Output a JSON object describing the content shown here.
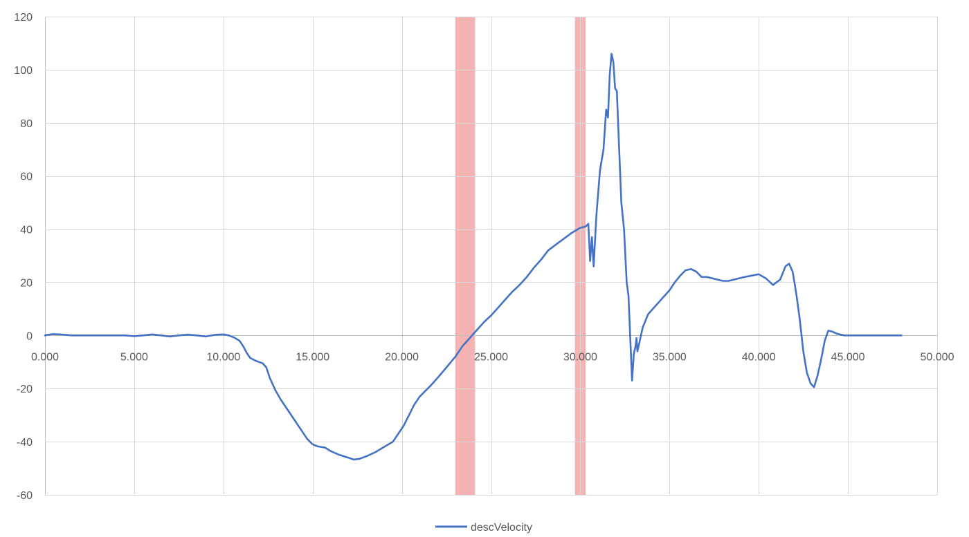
{
  "chart_data": {
    "type": "line",
    "title": "",
    "xlabel": "",
    "ylabel": "",
    "xlim": [
      0,
      50
    ],
    "ylim": [
      -60,
      120
    ],
    "x_ticks": [
      0,
      5,
      10,
      15,
      20,
      25,
      30,
      35,
      40,
      45,
      50
    ],
    "x_tick_labels": [
      "0.000",
      "5.000",
      "10.000",
      "15.000",
      "20.000",
      "25.000",
      "30.000",
      "35.000",
      "40.000",
      "45.000",
      "50.000"
    ],
    "y_ticks": [
      -60,
      -40,
      -20,
      0,
      20,
      40,
      60,
      80,
      100,
      120
    ],
    "y_tick_labels": [
      "-60",
      "-40",
      "-20",
      "0",
      "20",
      "40",
      "60",
      "80",
      "100",
      "120"
    ],
    "grid": true,
    "legend_position": "bottom",
    "highlight_bands": [
      {
        "x_start": 23.0,
        "x_end": 24.1,
        "color": "#f4a6a6"
      },
      {
        "x_start": 29.7,
        "x_end": 30.3,
        "color": "#f4a6a6"
      }
    ],
    "series": [
      {
        "name": "descVelocity",
        "color": "#4472c4",
        "points": [
          [
            0.0,
            0.0
          ],
          [
            0.2,
            0.3
          ],
          [
            0.5,
            0.5
          ],
          [
            1.0,
            0.3
          ],
          [
            1.5,
            0.0
          ],
          [
            3.0,
            0.0
          ],
          [
            4.5,
            0.0
          ],
          [
            5.0,
            -0.3
          ],
          [
            5.5,
            0.0
          ],
          [
            6.0,
            0.4
          ],
          [
            6.5,
            0.0
          ],
          [
            7.0,
            -0.4
          ],
          [
            7.5,
            0.0
          ],
          [
            8.0,
            0.3
          ],
          [
            8.5,
            0.0
          ],
          [
            9.0,
            -0.4
          ],
          [
            9.5,
            0.2
          ],
          [
            10.0,
            0.4
          ],
          [
            10.3,
            0.0
          ],
          [
            10.6,
            -0.8
          ],
          [
            10.9,
            -2.0
          ],
          [
            11.1,
            -4.0
          ],
          [
            11.3,
            -6.5
          ],
          [
            11.5,
            -8.5
          ],
          [
            11.8,
            -9.5
          ],
          [
            12.0,
            -10.0
          ],
          [
            12.2,
            -10.5
          ],
          [
            12.4,
            -12.0
          ],
          [
            12.6,
            -16.0
          ],
          [
            12.9,
            -20.5
          ],
          [
            13.2,
            -24.0
          ],
          [
            13.6,
            -28.0
          ],
          [
            14.0,
            -32.0
          ],
          [
            14.4,
            -36.0
          ],
          [
            14.7,
            -39.0
          ],
          [
            15.0,
            -41.0
          ],
          [
            15.3,
            -41.8
          ],
          [
            15.7,
            -42.2
          ],
          [
            16.0,
            -43.5
          ],
          [
            16.5,
            -45.0
          ],
          [
            17.0,
            -46.0
          ],
          [
            17.3,
            -46.7
          ],
          [
            17.6,
            -46.5
          ],
          [
            18.0,
            -45.5
          ],
          [
            18.5,
            -44.0
          ],
          [
            19.0,
            -42.0
          ],
          [
            19.5,
            -40.0
          ],
          [
            19.8,
            -37.0
          ],
          [
            20.1,
            -34.0
          ],
          [
            20.4,
            -30.0
          ],
          [
            20.7,
            -26.0
          ],
          [
            21.0,
            -23.0
          ],
          [
            21.3,
            -21.0
          ],
          [
            21.6,
            -19.0
          ],
          [
            22.0,
            -16.0
          ],
          [
            22.5,
            -12.0
          ],
          [
            23.0,
            -8.0
          ],
          [
            23.4,
            -4.0
          ],
          [
            23.8,
            -1.0
          ],
          [
            24.2,
            2.0
          ],
          [
            24.6,
            5.0
          ],
          [
            25.0,
            7.5
          ],
          [
            25.4,
            10.5
          ],
          [
            25.8,
            13.5
          ],
          [
            26.2,
            16.5
          ],
          [
            26.6,
            19.0
          ],
          [
            27.0,
            22.0
          ],
          [
            27.4,
            25.5
          ],
          [
            27.8,
            28.5
          ],
          [
            28.2,
            32.0
          ],
          [
            28.6,
            34.0
          ],
          [
            29.0,
            36.0
          ],
          [
            29.5,
            38.5
          ],
          [
            30.0,
            40.5
          ],
          [
            30.3,
            41.0
          ],
          [
            30.45,
            42.0
          ],
          [
            30.55,
            28.0
          ],
          [
            30.65,
            37.0
          ],
          [
            30.75,
            26.0
          ],
          [
            30.9,
            45.0
          ],
          [
            31.1,
            62.0
          ],
          [
            31.3,
            70.0
          ],
          [
            31.45,
            85.0
          ],
          [
            31.55,
            82.0
          ],
          [
            31.65,
            98.0
          ],
          [
            31.75,
            106.0
          ],
          [
            31.85,
            103.0
          ],
          [
            31.95,
            93.0
          ],
          [
            32.05,
            92.0
          ],
          [
            32.15,
            75.0
          ],
          [
            32.3,
            50.0
          ],
          [
            32.45,
            40.0
          ],
          [
            32.6,
            20.0
          ],
          [
            32.7,
            15.0
          ],
          [
            32.9,
            -17.0
          ],
          [
            33.0,
            -7.0
          ],
          [
            33.1,
            -4.0
          ],
          [
            33.15,
            -1.0
          ],
          [
            33.2,
            -6.0
          ],
          [
            33.3,
            -3.0
          ],
          [
            33.5,
            3.0
          ],
          [
            33.8,
            8.0
          ],
          [
            34.2,
            11.0
          ],
          [
            34.6,
            14.0
          ],
          [
            35.0,
            17.0
          ],
          [
            35.3,
            20.0
          ],
          [
            35.6,
            22.5
          ],
          [
            35.9,
            24.5
          ],
          [
            36.2,
            25.0
          ],
          [
            36.5,
            24.0
          ],
          [
            36.8,
            22.0
          ],
          [
            37.1,
            22.0
          ],
          [
            37.4,
            21.5
          ],
          [
            37.7,
            21.0
          ],
          [
            38.0,
            20.5
          ],
          [
            38.3,
            20.5
          ],
          [
            38.6,
            21.0
          ],
          [
            38.9,
            21.5
          ],
          [
            39.2,
            22.0
          ],
          [
            39.6,
            22.5
          ],
          [
            40.0,
            23.0
          ],
          [
            40.4,
            21.5
          ],
          [
            40.8,
            19.0
          ],
          [
            41.2,
            21.0
          ],
          [
            41.5,
            26.0
          ],
          [
            41.7,
            27.0
          ],
          [
            41.9,
            24.0
          ],
          [
            42.1,
            16.0
          ],
          [
            42.3,
            6.0
          ],
          [
            42.5,
            -6.0
          ],
          [
            42.7,
            -14.0
          ],
          [
            42.9,
            -18.0
          ],
          [
            43.1,
            -19.5
          ],
          [
            43.3,
            -15.0
          ],
          [
            43.5,
            -9.0
          ],
          [
            43.7,
            -2.0
          ],
          [
            43.9,
            1.8
          ],
          [
            44.1,
            1.5
          ],
          [
            44.4,
            0.6
          ],
          [
            44.8,
            0.0
          ],
          [
            45.2,
            0.0
          ],
          [
            46.0,
            0.0
          ],
          [
            46.5,
            0.0
          ],
          [
            47.0,
            0.0
          ],
          [
            47.5,
            0.0
          ],
          [
            48.0,
            0.0
          ]
        ]
      }
    ]
  }
}
